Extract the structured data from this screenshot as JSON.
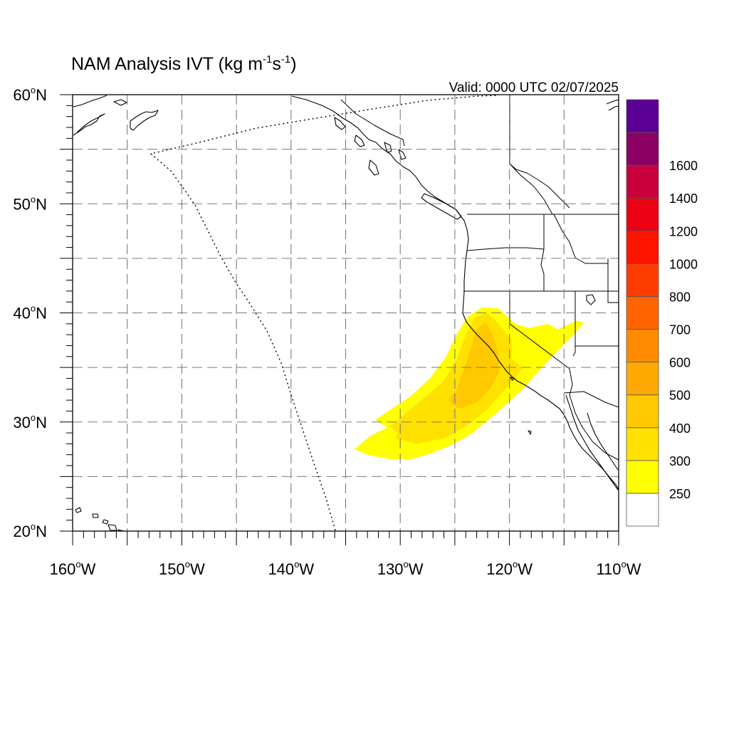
{
  "title": {
    "main": "NAM Analysis IVT (kg m",
    "sup1": "-1",
    "mid": "s",
    "sup2": "-1",
    "end": ")"
  },
  "valid": "Valid: 0000 UTC 02/07/2025",
  "map": {
    "lon_range": [
      -160,
      -110
    ],
    "lat_range": [
      20,
      60
    ],
    "lon_labels": [
      {
        "lon": -160,
        "text": "160"
      },
      {
        "lon": -150,
        "text": "150"
      },
      {
        "lon": -140,
        "text": "140"
      },
      {
        "lon": -130,
        "text": "130"
      },
      {
        "lon": -120,
        "text": "120"
      },
      {
        "lon": -110,
        "text": "110"
      }
    ],
    "lon_suffix": "W",
    "lat_labels": [
      {
        "lat": 60,
        "text": "60"
      },
      {
        "lat": 50,
        "text": "50"
      },
      {
        "lat": 40,
        "text": "40"
      },
      {
        "lat": 30,
        "text": "30"
      },
      {
        "lat": 20,
        "text": "20"
      }
    ],
    "lat_suffix": "N",
    "degree_symbol": "o",
    "gridlines": "dashed every 5 degrees",
    "colors": {
      "ivt_250": "#ffff00",
      "ivt_300": "#ffe100",
      "ivt_400": "#ffc800"
    },
    "ivt_plume": [
      {
        "level": 250,
        "polygon": [
          [
            -134.2,
            27.5
          ],
          [
            -133.0,
            27.0
          ],
          [
            -131.0,
            26.6
          ],
          [
            -129.0,
            26.6
          ],
          [
            -127.5,
            27.0
          ],
          [
            -125.5,
            27.8
          ],
          [
            -123.5,
            28.9
          ],
          [
            -121.8,
            30.3
          ],
          [
            -120.2,
            31.7
          ],
          [
            -118.7,
            33.1
          ],
          [
            -117.4,
            34.6
          ],
          [
            -116.0,
            36.1
          ],
          [
            -114.5,
            37.6
          ],
          [
            -113.2,
            39.1
          ],
          [
            -113.8,
            39.3
          ],
          [
            -115.6,
            38.5
          ],
          [
            -116.5,
            39.0
          ],
          [
            -118.2,
            38.6
          ],
          [
            -119.5,
            39.0
          ],
          [
            -121.0,
            40.4
          ],
          [
            -122.5,
            40.5
          ],
          [
            -123.8,
            39.7
          ],
          [
            -124.8,
            38.1
          ],
          [
            -125.8,
            36.0
          ],
          [
            -127.2,
            34.1
          ],
          [
            -129.0,
            32.4
          ],
          [
            -130.8,
            31.2
          ],
          [
            -132.3,
            30.2
          ],
          [
            -131.2,
            29.5
          ],
          [
            -132.8,
            28.7
          ]
        ]
      },
      {
        "level": 300,
        "polygon": [
          [
            -130.5,
            28.5
          ],
          [
            -128.5,
            28.0
          ],
          [
            -126.0,
            28.5
          ],
          [
            -124.0,
            29.6
          ],
          [
            -122.2,
            31.0
          ],
          [
            -120.8,
            32.5
          ],
          [
            -119.5,
            34.0
          ],
          [
            -118.8,
            35.0
          ],
          [
            -119.8,
            35.8
          ],
          [
            -119.8,
            37.5
          ],
          [
            -121.0,
            39.0
          ],
          [
            -122.0,
            40.0
          ],
          [
            -123.2,
            39.6
          ],
          [
            -124.0,
            38.0
          ],
          [
            -124.8,
            35.8
          ],
          [
            -126.0,
            33.8
          ],
          [
            -127.8,
            32.2
          ],
          [
            -129.5,
            30.8
          ],
          [
            -131.0,
            29.6
          ],
          [
            -130.2,
            29.0
          ]
        ]
      },
      {
        "level": 400,
        "polygon": [
          [
            -124.7,
            31.2
          ],
          [
            -123.0,
            31.8
          ],
          [
            -121.8,
            33.0
          ],
          [
            -121.0,
            34.5
          ],
          [
            -121.0,
            36.2
          ],
          [
            -121.5,
            38.0
          ],
          [
            -122.2,
            39.1
          ],
          [
            -123.0,
            38.5
          ],
          [
            -123.5,
            36.8
          ],
          [
            -124.2,
            34.8
          ],
          [
            -124.8,
            33.0
          ],
          [
            -125.6,
            32.0
          ]
        ]
      }
    ]
  },
  "colorbar": {
    "colors": [
      "#ffffff",
      "#ffff00",
      "#ffe100",
      "#ffc800",
      "#ffaa00",
      "#ff8c00",
      "#ff6400",
      "#ff3c00",
      "#ff1400",
      "#eb0014",
      "#c8003c",
      "#8c0064",
      "#5a0096"
    ],
    "labels": [
      "250",
      "300",
      "400",
      "500",
      "600",
      "700",
      "800",
      "1000",
      "1200",
      "1400",
      "1600"
    ]
  }
}
